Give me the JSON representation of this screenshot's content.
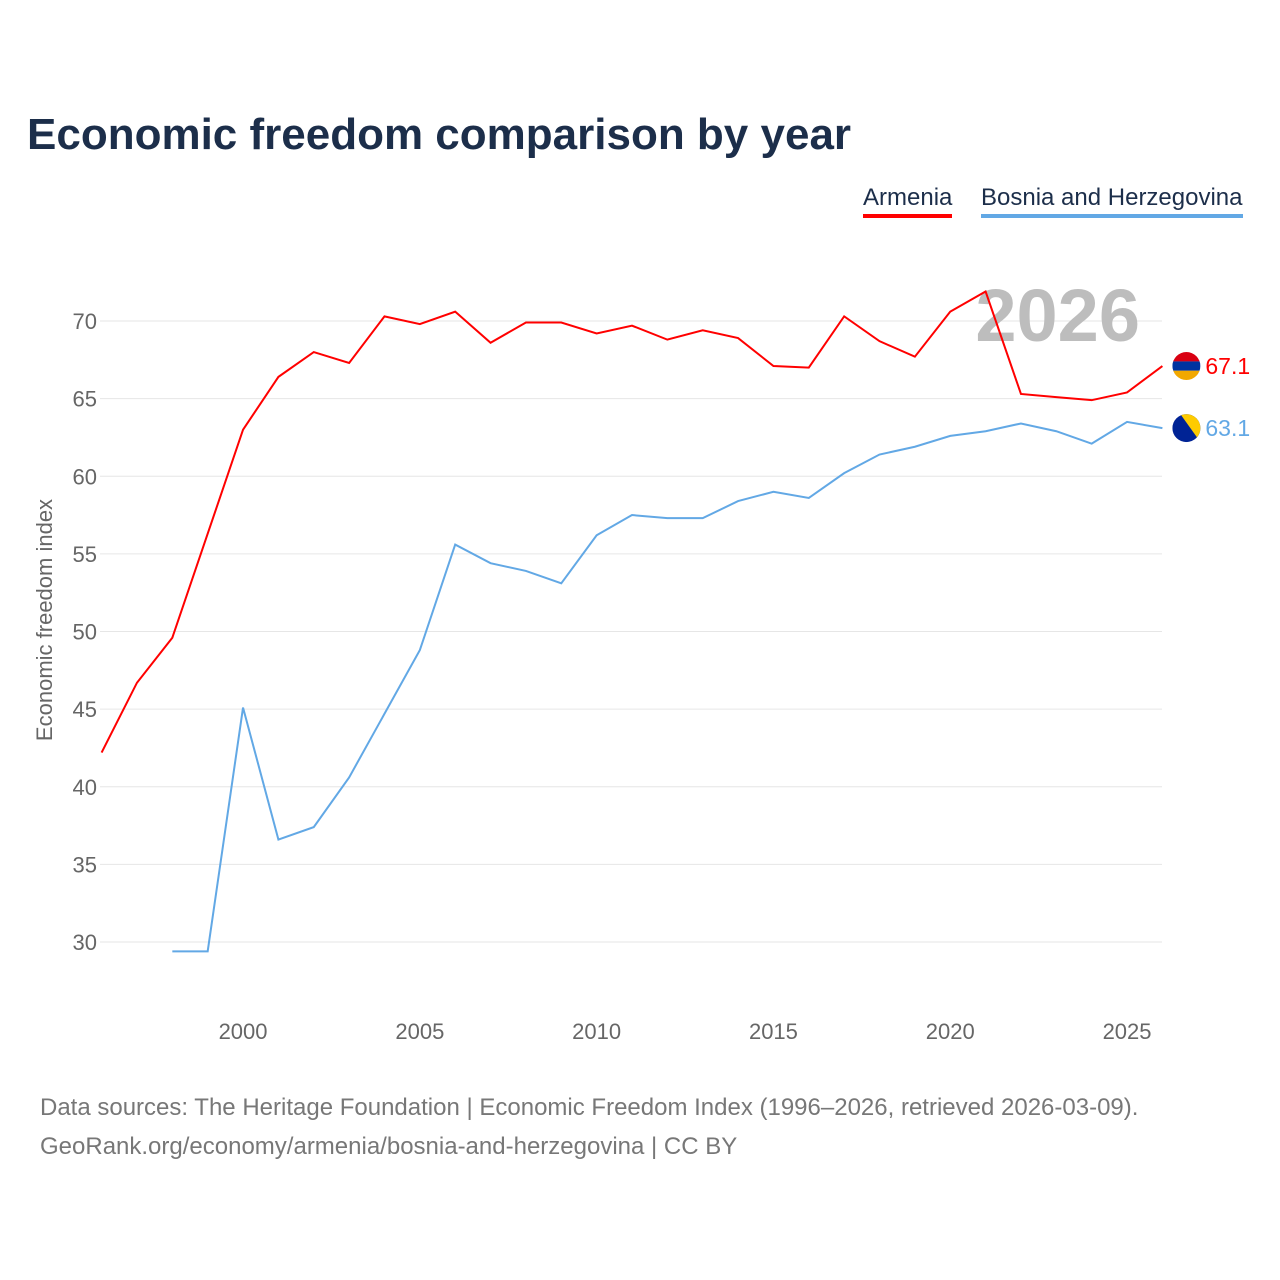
{
  "chart_data": {
    "type": "line",
    "title": "Economic freedom comparison by year",
    "ylabel": "Economic freedom index",
    "xlabel": "",
    "watermark_year": "2026",
    "xlim": [
      1996,
      2026
    ],
    "ylim": [
      25.5,
      73
    ],
    "yticks": [
      30,
      35,
      40,
      45,
      50,
      55,
      60,
      65,
      70
    ],
    "xticks": [
      2000,
      2005,
      2010,
      2015,
      2020,
      2025
    ],
    "grid": true,
    "legend_position": "top-right",
    "series": [
      {
        "name": "Armenia",
        "color": "#ff0000",
        "end_label": "67.1",
        "flag": "armenia-flag",
        "x": [
          1996,
          1997,
          1998,
          1999,
          2000,
          2001,
          2002,
          2003,
          2004,
          2005,
          2006,
          2007,
          2008,
          2009,
          2010,
          2011,
          2012,
          2013,
          2014,
          2015,
          2016,
          2017,
          2018,
          2019,
          2020,
          2021,
          2022,
          2023,
          2024,
          2025,
          2026
        ],
        "values": [
          42.2,
          46.7,
          49.6,
          56.3,
          63.0,
          66.4,
          68.0,
          67.3,
          70.3,
          69.8,
          70.6,
          68.6,
          69.9,
          69.9,
          69.2,
          69.7,
          68.8,
          69.4,
          68.9,
          67.1,
          67.0,
          70.3,
          68.7,
          67.7,
          70.6,
          71.9,
          65.3,
          65.1,
          64.9,
          65.4,
          67.1
        ]
      },
      {
        "name": "Bosnia and Herzegovina",
        "color": "#62a8e5",
        "end_label": "63.1",
        "flag": "bosnia-flag",
        "x": [
          1998,
          1999,
          2000,
          2001,
          2002,
          2003,
          2004,
          2005,
          2006,
          2007,
          2008,
          2009,
          2010,
          2011,
          2012,
          2013,
          2014,
          2015,
          2016,
          2017,
          2018,
          2019,
          2020,
          2021,
          2022,
          2023,
          2024,
          2025,
          2026
        ],
        "values": [
          29.4,
          29.4,
          45.1,
          36.6,
          37.4,
          40.6,
          44.7,
          48.8,
          55.6,
          54.4,
          53.9,
          53.1,
          56.2,
          57.5,
          57.3,
          57.3,
          58.4,
          59.0,
          58.6,
          60.2,
          61.4,
          61.9,
          62.6,
          62.9,
          63.4,
          62.9,
          62.1,
          63.5,
          63.1
        ]
      }
    ]
  },
  "footer": {
    "source": "Data sources: The Heritage Foundation | Economic Freedom Index (1996–2026, retrieved 2026-03-09).",
    "url": "GeoRank.org/economy/armenia/bosnia-and-herzegovina | CC BY"
  }
}
